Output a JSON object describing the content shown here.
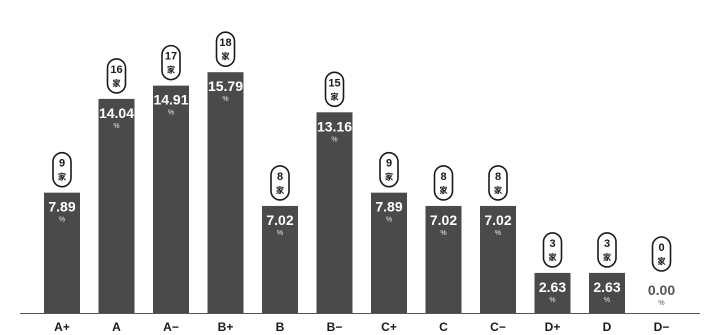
{
  "chart_data": {
    "type": "bar",
    "categories": [
      "A+",
      "A",
      "A−",
      "B+",
      "B",
      "B−",
      "C+",
      "C",
      "C−",
      "D+",
      "D",
      "D−"
    ],
    "values": [
      7.89,
      14.04,
      14.91,
      15.79,
      7.02,
      13.16,
      7.89,
      7.02,
      7.02,
      2.63,
      2.63,
      0.0
    ],
    "value_labels": [
      "7.89",
      "14.04",
      "14.91",
      "15.79",
      "7.02",
      "13.16",
      "7.89",
      "7.02",
      "7.02",
      "2.63",
      "2.63",
      "0.00"
    ],
    "value_unit": "%",
    "counts": [
      9,
      16,
      17,
      18,
      8,
      15,
      9,
      8,
      8,
      3,
      3,
      0
    ],
    "count_unit": "家",
    "ylim": [
      0,
      18
    ],
    "grid": false,
    "colors": {
      "bar": "#4a4a4a",
      "text_on_bar": "#ffffff",
      "text": "#1a1a1a"
    }
  }
}
